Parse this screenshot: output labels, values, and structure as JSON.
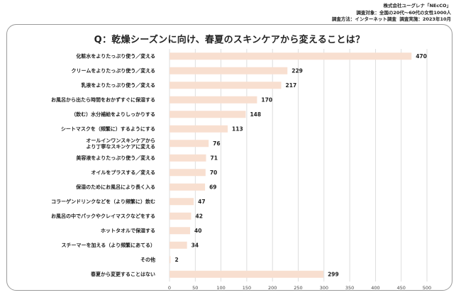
{
  "header": {
    "company": "株式会社ユーグレナ「NEcCO」",
    "target_label": "調査対象：",
    "target": "全国の20代〜60代の女性1000人",
    "method_label": "調査方法：",
    "method": "インターネット調査",
    "date_label": "調査実施：",
    "date": "2023年10月"
  },
  "chart_data": {
    "type": "bar",
    "orientation": "horizontal",
    "title": "Q：乾燥シーズンに向け、春夏のスキンケアから変えることは？",
    "categories": [
      "化粧水をよりたっぷり使う／変える",
      "クリームをよりたっぷり使う／変える",
      "乳液をよりたっぷり使う／変える",
      "お風呂から出たら時間をおかずすぐに保湿する",
      "（飲む）水分補給をよりしっかりする",
      "シートマスクを（頻繁に）するようにする",
      "オールインワンスキンケアから\nより丁寧なスキンケアに変える",
      "美容液をよりたっぷり使う／変える",
      "オイルをプラスする／変える",
      "保湿のためにお風呂により長く入る",
      "コラーゲンドリンクなどを（より頻繁に）飲む",
      "お風呂の中でパックやクレイマスクなどをする",
      "ホットタオルで保湿する",
      "スチーマーを加える（より頻繁にあてる）",
      "その他",
      "春夏から変更することはない"
    ],
    "values": [
      470,
      229,
      217,
      170,
      148,
      113,
      76,
      71,
      70,
      69,
      47,
      42,
      40,
      34,
      2,
      299
    ],
    "x_ticks": [
      0,
      50,
      100,
      150,
      200,
      250,
      300,
      350,
      400,
      450,
      500
    ],
    "xlim": [
      0,
      500
    ],
    "grid": true,
    "bar_color": "#f8dfd0",
    "grid_color": "#d6d6d6"
  }
}
